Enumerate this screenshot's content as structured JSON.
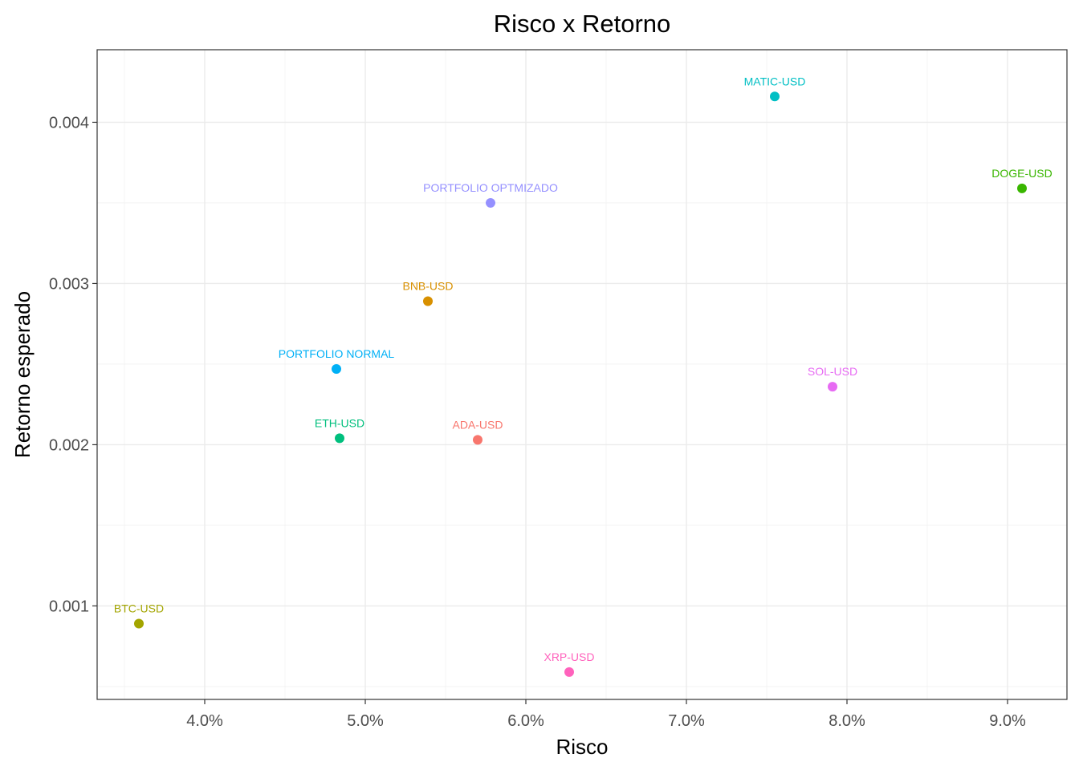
{
  "chart_data": {
    "type": "scatter",
    "title": "Risco x Retorno",
    "xlabel": "Risco",
    "ylabel": "Retorno esperado",
    "xlim": [
      3.33,
      9.37
    ],
    "ylim": [
      0.00042,
      0.00445
    ],
    "x_ticks": [
      4.0,
      5.0,
      6.0,
      7.0,
      8.0,
      9.0
    ],
    "x_tick_labels": [
      "4.0%",
      "5.0%",
      "6.0%",
      "7.0%",
      "8.0%",
      "9.0%"
    ],
    "y_ticks": [
      0.001,
      0.002,
      0.003,
      0.004
    ],
    "y_tick_labels": [
      "0.001",
      "0.002",
      "0.003",
      "0.004"
    ],
    "x_minor_ticks": [
      3.5,
      4.5,
      5.5,
      6.5,
      7.5,
      8.5
    ],
    "y_minor_ticks": [
      0.0005,
      0.0015,
      0.0025,
      0.0035
    ],
    "grid": true,
    "legend": "none",
    "points": [
      {
        "label": "ADA-USD",
        "x": 5.7,
        "y": 0.00203,
        "color": "#F8766D"
      },
      {
        "label": "BNB-USD",
        "x": 5.39,
        "y": 0.00289,
        "color": "#D89000"
      },
      {
        "label": "BTC-USD",
        "x": 3.59,
        "y": 0.00089,
        "color": "#A3A500"
      },
      {
        "label": "DOGE-USD",
        "x": 9.09,
        "y": 0.00359,
        "color": "#39B600"
      },
      {
        "label": "ETH-USD",
        "x": 4.84,
        "y": 0.00204,
        "color": "#00BF7D"
      },
      {
        "label": "MATIC-USD",
        "x": 7.55,
        "y": 0.00416,
        "color": "#00BFC4"
      },
      {
        "label": "PORTFOLIO NORMAL",
        "x": 4.82,
        "y": 0.00247,
        "color": "#00B0F6"
      },
      {
        "label": "PORTFOLIO OPTMIZADO",
        "x": 5.78,
        "y": 0.0035,
        "color": "#9590FF"
      },
      {
        "label": "SOL-USD",
        "x": 7.91,
        "y": 0.00236,
        "color": "#E76BF3"
      },
      {
        "label": "XRP-USD",
        "x": 6.27,
        "y": 0.00059,
        "color": "#FF62BC"
      }
    ]
  }
}
